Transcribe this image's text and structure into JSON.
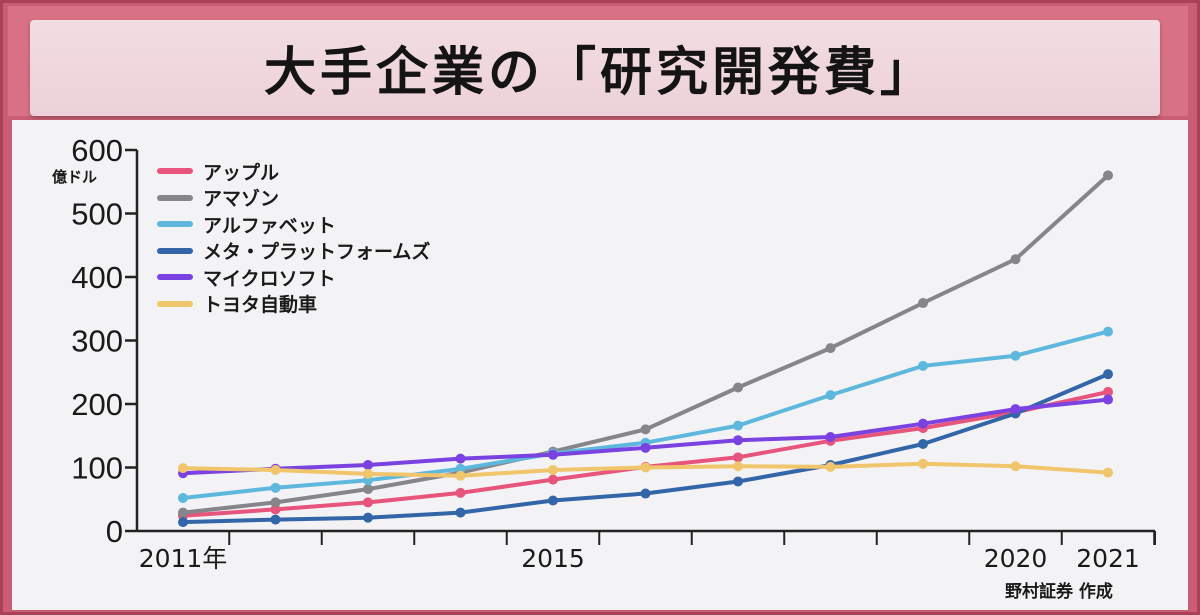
{
  "title": "大手企業の「研究開発費」",
  "source": "野村証券 作成",
  "chart_data": {
    "type": "line",
    "unit": "億ドル",
    "x": [
      2011,
      2012,
      2013,
      2014,
      2015,
      2016,
      2017,
      2018,
      2019,
      2020,
      2021
    ],
    "x_tick_labels": [
      "2011年",
      "2015",
      "2020",
      "2021"
    ],
    "x_tick_label_years": [
      2011,
      2015,
      2020,
      2021
    ],
    "ylim": [
      0,
      600
    ],
    "y_ticks": [
      0,
      100,
      200,
      300,
      400,
      500,
      600
    ],
    "legend_position": "top-left",
    "grid": false,
    "series": [
      {
        "name": "アップル",
        "color": "#e8557c",
        "values": [
          24,
          34,
          45,
          60,
          81,
          101,
          116,
          142,
          162,
          187,
          219
        ]
      },
      {
        "name": "アマゾン",
        "color": "#85858a",
        "values": [
          29,
          45,
          66,
          92,
          125,
          160,
          226,
          288,
          359,
          428,
          560
        ]
      },
      {
        "name": "アルファベット",
        "color": "#5eb7dc",
        "values": [
          52,
          68,
          80,
          98,
          122,
          139,
          166,
          214,
          260,
          276,
          314
        ]
      },
      {
        "name": "メタ・プラットフォームズ",
        "color": "#3366a8",
        "values": [
          14,
          18,
          21,
          29,
          48,
          59,
          78,
          104,
          137,
          185,
          247
        ]
      },
      {
        "name": "マイクロソフト",
        "color": "#7a42e0",
        "values": [
          91,
          98,
          104,
          114,
          120,
          131,
          143,
          148,
          169,
          192,
          207
        ]
      },
      {
        "name": "トヨタ自動車",
        "color": "#f0c56b",
        "values": [
          99,
          96,
          90,
          87,
          96,
          100,
          102,
          101,
          106,
          102,
          92
        ]
      }
    ]
  }
}
